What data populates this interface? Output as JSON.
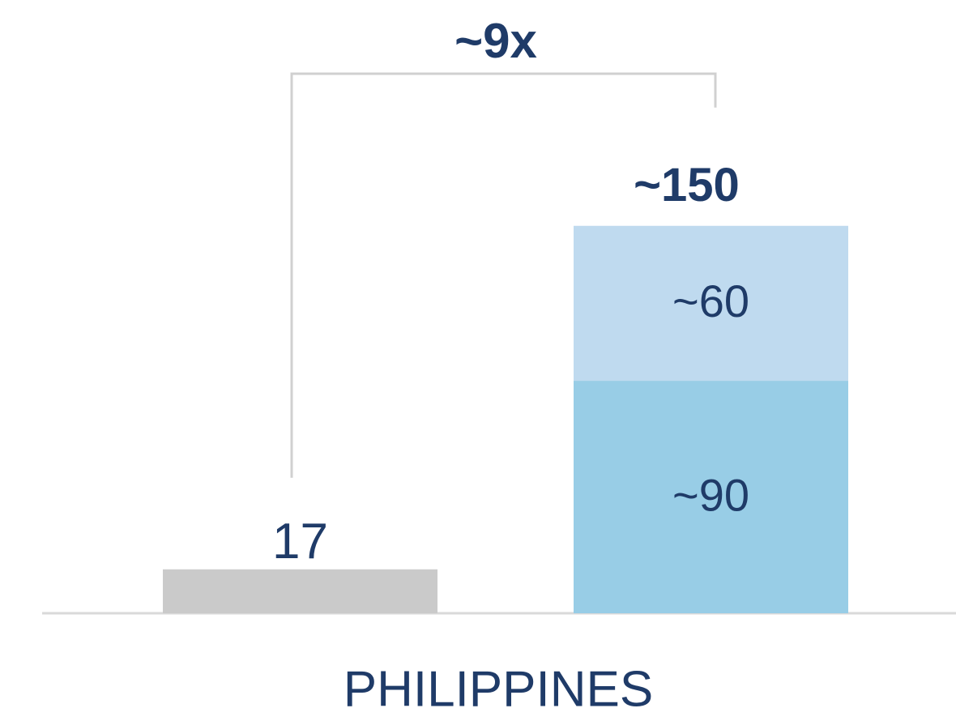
{
  "chart_data": {
    "type": "bar",
    "categories": [
      "PHILIPPINES"
    ],
    "series": [
      {
        "color": "#cacaca",
        "stack": 0,
        "values": [
          17
        ]
      },
      {
        "color": "#98cde6",
        "stack": 1,
        "values": [
          90
        ],
        "value_labels": [
          "~90"
        ]
      },
      {
        "color": "#bfdaef",
        "stack": 1,
        "values": [
          60
        ],
        "value_labels": [
          "~60"
        ]
      }
    ],
    "annotations": [
      {
        "text": "~9x"
      },
      {
        "text": "~150"
      }
    ],
    "ylim": [
      0,
      170
    ],
    "grid": false
  }
}
